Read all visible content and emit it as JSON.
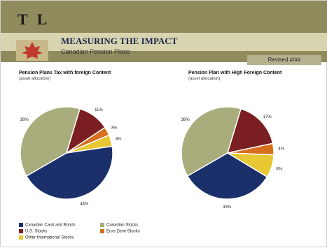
{
  "header": {
    "logo": "T L",
    "title": "MEASURING THE IMPACT",
    "subtitle": "Canadian Pension Plans",
    "date_tag": "Revised #/##"
  },
  "colors": {
    "header": "#8f8b5c",
    "band": "#d9d4b0",
    "canadian_cash_bonds": "#1b2f6b",
    "us_stocks": "#7b1e22",
    "other_international": "#e8c832",
    "canadian_stocks": "#a9ad7c",
    "euro_zone": "#d86f1f"
  },
  "chart_data": [
    {
      "type": "pie",
      "title": "Pension Plans Tax with foreign Content",
      "subtitle": "(asset allocation)",
      "slices": [
        {
          "name": "Canadian Stocks",
          "value": 38,
          "label": "38%",
          "color": "#a9ad7c"
        },
        {
          "name": "U.S. Stocks",
          "value": 11,
          "label": "11%",
          "color": "#7b1e22"
        },
        {
          "name": "Euro Zone Stocks",
          "value": 3,
          "label": "3%",
          "color": "#d86f1f"
        },
        {
          "name": "Other International Stocks",
          "value": 4,
          "label": "4%",
          "color": "#e8c832"
        },
        {
          "name": "Canadian Cash and Bonds",
          "value": 44,
          "label": "44%",
          "color": "#1b2f6b"
        }
      ]
    },
    {
      "type": "pie",
      "title": "Pension Plan with High Foreign Content",
      "subtitle": "(asset allocation)",
      "slices": [
        {
          "name": "Canadian Stocks",
          "value": 38,
          "label": "38%",
          "color": "#a9ad7c"
        },
        {
          "name": "U.S. Stocks",
          "value": 17,
          "label": "17%",
          "color": "#7b1e22"
        },
        {
          "name": "Euro Zone Stocks",
          "value": 4,
          "label": "4%",
          "color": "#d86f1f"
        },
        {
          "name": "Other International Stocks",
          "value": 8,
          "label": "8%",
          "color": "#e8c832"
        },
        {
          "name": "Canadian Cash and Bonds",
          "value": 33,
          "label": "33%",
          "color": "#1b2f6b"
        }
      ]
    }
  ],
  "legend": [
    {
      "label": "Canadian Cash and Bonds",
      "color": "#1b2f6b"
    },
    {
      "label": "U.S. Stocks",
      "color": "#7b1e22"
    },
    {
      "label": "Other International Stocks",
      "color": "#e8c832"
    },
    {
      "label": "Canadian Stocks",
      "color": "#a9ad7c"
    },
    {
      "label": "Euro Zone Stocks",
      "color": "#d86f1f"
    }
  ]
}
